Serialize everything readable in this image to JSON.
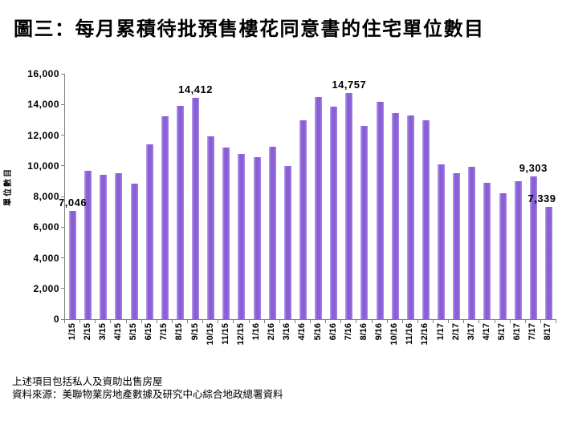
{
  "title": "圖三：每月累積待批預售樓花同意書的住宅單位數目",
  "footnotes": {
    "line1": "上述項目包括私人及資助出售房屋",
    "line2": "資料來源：美聯物業房地產數據及研究中心綜合地政總署資料"
  },
  "colors": {
    "bar": "#8a5ed6",
    "bar_edge_highlight": "#b9a4ea",
    "axis": "#808080",
    "text": "#000000",
    "background": "#ffffff"
  },
  "chart_data": {
    "type": "bar",
    "title": "圖三：每月累積待批預售樓花同意書的住宅單位數目",
    "xlabel": "",
    "ylabel": "單位數目",
    "ylim": [
      0,
      16000
    ],
    "ytick_step": 2000,
    "grid": false,
    "legend": false,
    "categories": [
      "1/15",
      "2/15",
      "3/15",
      "4/15",
      "5/15",
      "6/15",
      "7/15",
      "8/15",
      "9/15",
      "10/15",
      "11/15",
      "12/15",
      "1/16",
      "2/16",
      "3/16",
      "4/16",
      "5/16",
      "6/16",
      "7/16",
      "8/16",
      "9/16",
      "10/16",
      "11/16",
      "12/16",
      "1/17",
      "2/17",
      "3/17",
      "4/17",
      "5/17",
      "6/17",
      "7/17",
      "8/17"
    ],
    "values": [
      7046,
      9650,
      9400,
      9500,
      8850,
      11400,
      13250,
      13900,
      14412,
      11900,
      11200,
      10750,
      10550,
      11250,
      10000,
      12950,
      14500,
      13850,
      14757,
      12600,
      14150,
      13450,
      13300,
      12950,
      10100,
      9500,
      9950,
      8900,
      8200,
      9000,
      9303,
      7339
    ],
    "annotations": [
      {
        "index": 0,
        "text": "7,046"
      },
      {
        "index": 8,
        "text": "14,412"
      },
      {
        "index": 18,
        "text": "14,757"
      },
      {
        "index": 30,
        "text": "9,303"
      },
      {
        "index": 31,
        "text": "7,339"
      }
    ]
  }
}
